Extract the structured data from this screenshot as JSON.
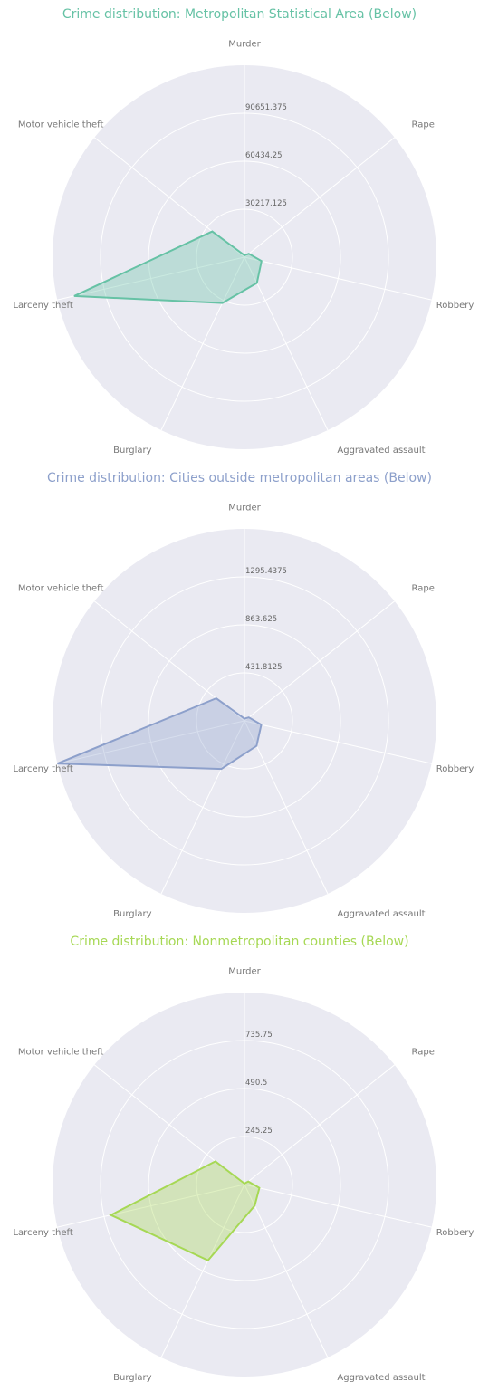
{
  "chart_data": [
    {
      "type": "radar",
      "title": "Crime distribution: Metropolitan Statistical Area (Below)",
      "color": "#66c2a5",
      "categories": [
        "Murder",
        "Rape",
        "Robbery",
        "Aggravated assault",
        "Burglary",
        "Larceny theft",
        "Motor vehicle theft"
      ],
      "tick_labels": [
        "30217.125",
        "60434.25",
        "90651.375"
      ],
      "tick_values": [
        30217.125,
        60434.25,
        90651.375
      ],
      "rmax": 120868.5,
      "values": [
        1200,
        3500,
        11000,
        18000,
        32000,
        110000,
        26000
      ]
    },
    {
      "type": "radar",
      "title": "Crime distribution: Cities outside metropolitan areas (Below)",
      "color": "#8da0cb",
      "categories": [
        "Murder",
        "Rape",
        "Robbery",
        "Aggravated assault",
        "Burglary",
        "Larceny theft",
        "Motor vehicle theft"
      ],
      "tick_labels": [
        "431.8125",
        "863.625",
        "1295.4375"
      ],
      "tick_values": [
        431.8125,
        863.625,
        1295.4375
      ],
      "rmax": 1727.25,
      "values": [
        20,
        50,
        155,
        250,
        480,
        1727,
        325
      ]
    },
    {
      "type": "radar",
      "title": "Crime distribution: Nonmetropolitan counties (Below)",
      "color": "#a6d854",
      "categories": [
        "Murder",
        "Rape",
        "Robbery",
        "Aggravated assault",
        "Burglary",
        "Larceny theft",
        "Motor vehicle theft"
      ],
      "tick_labels": [
        "245.25",
        "490.5",
        "735.75"
      ],
      "tick_values": [
        245.25,
        490.5,
        735.75
      ],
      "rmax": 981,
      "values": [
        5,
        25,
        78,
        120,
        430,
        700,
        190
      ]
    }
  ]
}
